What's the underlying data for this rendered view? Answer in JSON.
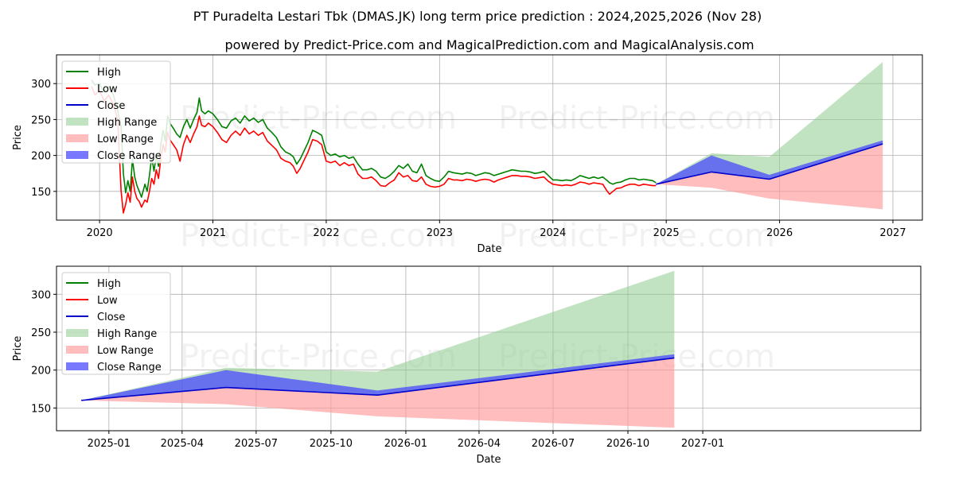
{
  "title_line1": "PT Puradelta Lestari Tbk (DMAS.JK) long term price prediction : 2024,2025,2026 (Nov 28)",
  "title_line2": "powered by Predict-Price.com and MagicalPrediction.com and MagicalAnalysis.com",
  "watermark": "Predict-Price.com",
  "colors": {
    "high": "#008000",
    "low": "#ff0000",
    "close": "#0000cc",
    "high_range": "#8fcc8f",
    "low_range": "#ff9a9a",
    "close_range": "#4040ff"
  },
  "legend": [
    "High",
    "Low",
    "Close",
    "High Range",
    "Low Range",
    "Close Range"
  ],
  "chart_data": [
    {
      "type": "line",
      "name": "history-and-forecast",
      "xlabel": "Date",
      "ylabel": "Price",
      "x_range": [
        2019.62,
        2027.26
      ],
      "ylim": [
        110,
        340
      ],
      "xticks": [
        {
          "v": 2020,
          "label": "2020"
        },
        {
          "v": 2021,
          "label": "2021"
        },
        {
          "v": 2022,
          "label": "2022"
        },
        {
          "v": 2023,
          "label": "2023"
        },
        {
          "v": 2024,
          "label": "2024"
        },
        {
          "v": 2025,
          "label": "2025"
        },
        {
          "v": 2026,
          "label": "2026"
        },
        {
          "v": 2027,
          "label": "2027"
        }
      ],
      "yticks": [
        150,
        200,
        250,
        300
      ],
      "history_high": [
        [
          2019.93,
          305
        ],
        [
          2019.96,
          298
        ],
        [
          2020.0,
          300
        ],
        [
          2020.04,
          288
        ],
        [
          2020.08,
          296
        ],
        [
          2020.12,
          285
        ],
        [
          2020.16,
          262
        ],
        [
          2020.19,
          240
        ],
        [
          2020.21,
          175
        ],
        [
          2020.23,
          148
        ],
        [
          2020.25,
          165
        ],
        [
          2020.27,
          150
        ],
        [
          2020.29,
          195
        ],
        [
          2020.31,
          170
        ],
        [
          2020.33,
          158
        ],
        [
          2020.35,
          150
        ],
        [
          2020.37,
          142
        ],
        [
          2020.4,
          160
        ],
        [
          2020.42,
          150
        ],
        [
          2020.44,
          172
        ],
        [
          2020.46,
          198
        ],
        [
          2020.48,
          178
        ],
        [
          2020.5,
          200
        ],
        [
          2020.52,
          185
        ],
        [
          2020.54,
          215
        ],
        [
          2020.56,
          235
        ],
        [
          2020.58,
          220
        ],
        [
          2020.6,
          255
        ],
        [
          2020.62,
          245
        ],
        [
          2020.65,
          238
        ],
        [
          2020.68,
          230
        ],
        [
          2020.71,
          225
        ],
        [
          2020.74,
          240
        ],
        [
          2020.77,
          250
        ],
        [
          2020.8,
          238
        ],
        [
          2020.83,
          250
        ],
        [
          2020.86,
          260
        ],
        [
          2020.88,
          280
        ],
        [
          2020.9,
          262
        ],
        [
          2020.93,
          258
        ],
        [
          2020.96,
          262
        ],
        [
          2021.0,
          258
        ],
        [
          2021.04,
          250
        ],
        [
          2021.08,
          240
        ],
        [
          2021.12,
          238
        ],
        [
          2021.16,
          248
        ],
        [
          2021.2,
          252
        ],
        [
          2021.24,
          245
        ],
        [
          2021.28,
          255
        ],
        [
          2021.32,
          248
        ],
        [
          2021.36,
          252
        ],
        [
          2021.4,
          246
        ],
        [
          2021.44,
          250
        ],
        [
          2021.48,
          238
        ],
        [
          2021.52,
          232
        ],
        [
          2021.56,
          225
        ],
        [
          2021.6,
          212
        ],
        [
          2021.64,
          205
        ],
        [
          2021.68,
          202
        ],
        [
          2021.71,
          198
        ],
        [
          2021.74,
          188
        ],
        [
          2021.77,
          195
        ],
        [
          2021.8,
          205
        ],
        [
          2021.84,
          218
        ],
        [
          2021.88,
          235
        ],
        [
          2021.92,
          232
        ],
        [
          2021.96,
          228
        ],
        [
          2022.0,
          205
        ],
        [
          2022.04,
          200
        ],
        [
          2022.08,
          202
        ],
        [
          2022.12,
          198
        ],
        [
          2022.16,
          200
        ],
        [
          2022.2,
          196
        ],
        [
          2022.24,
          198
        ],
        [
          2022.28,
          188
        ],
        [
          2022.32,
          180
        ],
        [
          2022.36,
          180
        ],
        [
          2022.4,
          182
        ],
        [
          2022.44,
          178
        ],
        [
          2022.48,
          170
        ],
        [
          2022.52,
          168
        ],
        [
          2022.56,
          172
        ],
        [
          2022.6,
          178
        ],
        [
          2022.64,
          186
        ],
        [
          2022.68,
          182
        ],
        [
          2022.72,
          188
        ],
        [
          2022.76,
          178
        ],
        [
          2022.8,
          176
        ],
        [
          2022.84,
          188
        ],
        [
          2022.88,
          172
        ],
        [
          2022.92,
          168
        ],
        [
          2022.96,
          165
        ],
        [
          2023.0,
          164
        ],
        [
          2023.04,
          170
        ],
        [
          2023.08,
          178
        ],
        [
          2023.12,
          176
        ],
        [
          2023.16,
          175
        ],
        [
          2023.2,
          174
        ],
        [
          2023.24,
          176
        ],
        [
          2023.28,
          175
        ],
        [
          2023.32,
          172
        ],
        [
          2023.36,
          174
        ],
        [
          2023.4,
          176
        ],
        [
          2023.44,
          175
        ],
        [
          2023.48,
          172
        ],
        [
          2023.52,
          174
        ],
        [
          2023.56,
          176
        ],
        [
          2023.6,
          178
        ],
        [
          2023.64,
          180
        ],
        [
          2023.68,
          179
        ],
        [
          2023.72,
          178
        ],
        [
          2023.76,
          178
        ],
        [
          2023.8,
          177
        ],
        [
          2023.84,
          175
        ],
        [
          2023.88,
          176
        ],
        [
          2023.92,
          178
        ],
        [
          2023.96,
          172
        ],
        [
          2024.0,
          166
        ],
        [
          2024.04,
          166
        ],
        [
          2024.08,
          165
        ],
        [
          2024.12,
          166
        ],
        [
          2024.16,
          165
        ],
        [
          2024.2,
          168
        ],
        [
          2024.24,
          172
        ],
        [
          2024.28,
          170
        ],
        [
          2024.32,
          168
        ],
        [
          2024.36,
          170
        ],
        [
          2024.4,
          168
        ],
        [
          2024.44,
          170
        ],
        [
          2024.48,
          165
        ],
        [
          2024.5,
          162
        ],
        [
          2024.53,
          160
        ],
        [
          2024.56,
          162
        ],
        [
          2024.6,
          163
        ],
        [
          2024.64,
          166
        ],
        [
          2024.68,
          168
        ],
        [
          2024.72,
          168
        ],
        [
          2024.76,
          166
        ],
        [
          2024.8,
          167
        ],
        [
          2024.84,
          166
        ],
        [
          2024.88,
          165
        ],
        [
          2024.91,
          162
        ]
      ],
      "history_low": [
        [
          2019.93,
          296
        ],
        [
          2019.96,
          284
        ],
        [
          2020.0,
          290
        ],
        [
          2020.04,
          276
        ],
        [
          2020.08,
          284
        ],
        [
          2020.12,
          272
        ],
        [
          2020.16,
          250
        ],
        [
          2020.19,
          150
        ],
        [
          2020.21,
          120
        ],
        [
          2020.23,
          132
        ],
        [
          2020.25,
          148
        ],
        [
          2020.27,
          135
        ],
        [
          2020.29,
          170
        ],
        [
          2020.31,
          150
        ],
        [
          2020.33,
          140
        ],
        [
          2020.35,
          136
        ],
        [
          2020.37,
          128
        ],
        [
          2020.4,
          138
        ],
        [
          2020.42,
          135
        ],
        [
          2020.44,
          150
        ],
        [
          2020.46,
          168
        ],
        [
          2020.48,
          160
        ],
        [
          2020.5,
          180
        ],
        [
          2020.52,
          168
        ],
        [
          2020.54,
          195
        ],
        [
          2020.56,
          215
        ],
        [
          2020.58,
          205
        ],
        [
          2020.6,
          232
        ],
        [
          2020.62,
          222
        ],
        [
          2020.65,
          215
        ],
        [
          2020.68,
          208
        ],
        [
          2020.71,
          192
        ],
        [
          2020.74,
          215
        ],
        [
          2020.77,
          228
        ],
        [
          2020.8,
          218
        ],
        [
          2020.83,
          230
        ],
        [
          2020.86,
          240
        ],
        [
          2020.88,
          255
        ],
        [
          2020.9,
          242
        ],
        [
          2020.93,
          240
        ],
        [
          2020.96,
          245
        ],
        [
          2021.0,
          240
        ],
        [
          2021.04,
          232
        ],
        [
          2021.08,
          222
        ],
        [
          2021.12,
          218
        ],
        [
          2021.16,
          228
        ],
        [
          2021.2,
          234
        ],
        [
          2021.24,
          228
        ],
        [
          2021.28,
          238
        ],
        [
          2021.32,
          230
        ],
        [
          2021.36,
          234
        ],
        [
          2021.4,
          228
        ],
        [
          2021.44,
          232
        ],
        [
          2021.48,
          220
        ],
        [
          2021.52,
          214
        ],
        [
          2021.56,
          208
        ],
        [
          2021.6,
          196
        ],
        [
          2021.64,
          192
        ],
        [
          2021.68,
          190
        ],
        [
          2021.71,
          185
        ],
        [
          2021.74,
          175
        ],
        [
          2021.77,
          182
        ],
        [
          2021.8,
          192
        ],
        [
          2021.84,
          205
        ],
        [
          2021.88,
          222
        ],
        [
          2021.92,
          220
        ],
        [
          2021.96,
          215
        ],
        [
          2022.0,
          192
        ],
        [
          2022.04,
          190
        ],
        [
          2022.08,
          192
        ],
        [
          2022.12,
          186
        ],
        [
          2022.16,
          190
        ],
        [
          2022.2,
          186
        ],
        [
          2022.24,
          188
        ],
        [
          2022.28,
          174
        ],
        [
          2022.32,
          168
        ],
        [
          2022.36,
          168
        ],
        [
          2022.4,
          170
        ],
        [
          2022.44,
          165
        ],
        [
          2022.48,
          158
        ],
        [
          2022.52,
          157
        ],
        [
          2022.56,
          162
        ],
        [
          2022.6,
          166
        ],
        [
          2022.64,
          176
        ],
        [
          2022.68,
          170
        ],
        [
          2022.72,
          172
        ],
        [
          2022.76,
          165
        ],
        [
          2022.8,
          164
        ],
        [
          2022.84,
          170
        ],
        [
          2022.88,
          160
        ],
        [
          2022.92,
          157
        ],
        [
          2022.96,
          156
        ],
        [
          2023.0,
          157
        ],
        [
          2023.04,
          160
        ],
        [
          2023.08,
          168
        ],
        [
          2023.12,
          166
        ],
        [
          2023.16,
          166
        ],
        [
          2023.2,
          165
        ],
        [
          2023.24,
          167
        ],
        [
          2023.28,
          166
        ],
        [
          2023.32,
          164
        ],
        [
          2023.36,
          166
        ],
        [
          2023.4,
          167
        ],
        [
          2023.44,
          166
        ],
        [
          2023.48,
          163
        ],
        [
          2023.52,
          166
        ],
        [
          2023.56,
          168
        ],
        [
          2023.6,
          170
        ],
        [
          2023.64,
          172
        ],
        [
          2023.68,
          172
        ],
        [
          2023.72,
          171
        ],
        [
          2023.76,
          171
        ],
        [
          2023.8,
          170
        ],
        [
          2023.84,
          168
        ],
        [
          2023.88,
          169
        ],
        [
          2023.92,
          170
        ],
        [
          2023.96,
          164
        ],
        [
          2024.0,
          160
        ],
        [
          2024.04,
          159
        ],
        [
          2024.08,
          158
        ],
        [
          2024.12,
          159
        ],
        [
          2024.16,
          158
        ],
        [
          2024.2,
          160
        ],
        [
          2024.24,
          163
        ],
        [
          2024.28,
          162
        ],
        [
          2024.32,
          160
        ],
        [
          2024.36,
          162
        ],
        [
          2024.4,
          161
        ],
        [
          2024.44,
          160
        ],
        [
          2024.48,
          150
        ],
        [
          2024.5,
          146
        ],
        [
          2024.53,
          150
        ],
        [
          2024.56,
          154
        ],
        [
          2024.6,
          155
        ],
        [
          2024.64,
          158
        ],
        [
          2024.68,
          160
        ],
        [
          2024.72,
          160
        ],
        [
          2024.76,
          158
        ],
        [
          2024.8,
          160
        ],
        [
          2024.84,
          159
        ],
        [
          2024.88,
          158
        ],
        [
          2024.91,
          158
        ]
      ],
      "forecast_x": [
        2024.91,
        2025.4,
        2025.91,
        2026.91
      ],
      "forecast_close": [
        160,
        177,
        167,
        216
      ],
      "high_range_upper": [
        160,
        203,
        198,
        330
      ],
      "low_range_lower": [
        160,
        155,
        140,
        125
      ],
      "close_range_upper": [
        160,
        200,
        173,
        221
      ],
      "close_range_lower": [
        160,
        177,
        167,
        216
      ]
    },
    {
      "type": "line",
      "name": "forecast-zoom",
      "xlabel": "Date",
      "ylabel": "Price",
      "x_range": [
        -30.4,
        1032
      ],
      "ylim": [
        120,
        337
      ],
      "xticks": [
        {
          "v": 34,
          "label": "2025-01"
        },
        {
          "v": 124,
          "label": "2025-04"
        },
        {
          "v": 215,
          "label": "2025-07"
        },
        {
          "v": 307,
          "label": "2025-10"
        },
        {
          "v": 399,
          "label": "2026-01"
        },
        {
          "v": 489,
          "label": "2026-04"
        },
        {
          "v": 580,
          "label": "2026-07"
        },
        {
          "v": 672,
          "label": "2026-10"
        },
        {
          "v": 764,
          "label": "2027-01"
        }
      ],
      "yticks": [
        150,
        200,
        250,
        300
      ],
      "forecast_x": [
        0,
        178,
        364,
        729
      ],
      "forecast_close": [
        160,
        177,
        167,
        216
      ],
      "high_range_upper": [
        160,
        203,
        198,
        331
      ],
      "low_range_lower": [
        160,
        155,
        139,
        124
      ],
      "close_range_upper": [
        160,
        200,
        173,
        221
      ],
      "close_range_lower": [
        160,
        177,
        167,
        216
      ]
    }
  ]
}
